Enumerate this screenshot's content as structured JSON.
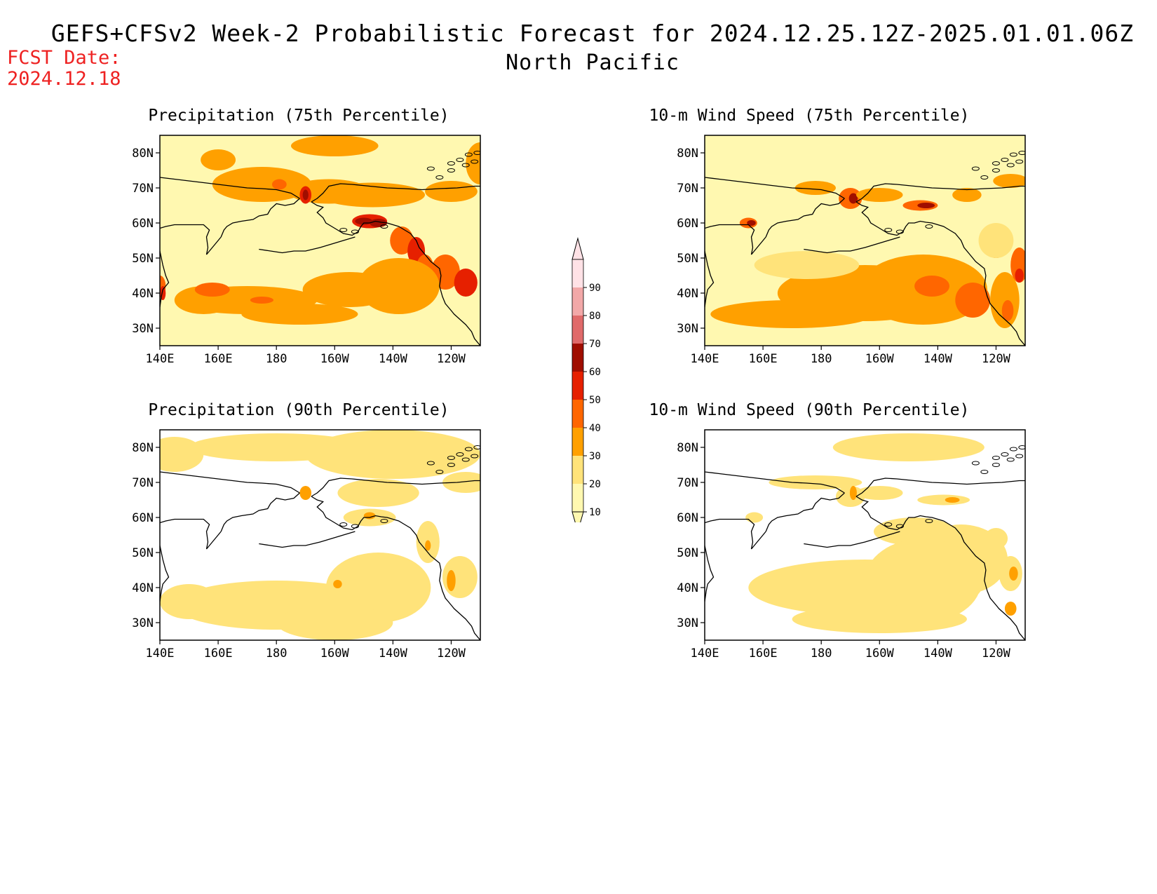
{
  "header": {
    "title": "GEFS+CFSv2 Week-2 Probabilistic Forecast for 2024.12.25.12Z-2025.01.01.06Z",
    "region": "North Pacific",
    "fcst_label": "FCST Date:",
    "fcst_date": "2024.12.18"
  },
  "panels": [
    {
      "id": "precip75",
      "title": "Precipitation (75th Percentile)"
    },
    {
      "id": "wind75",
      "title": "10-m Wind Speed (75th Percentile)"
    },
    {
      "id": "precip90",
      "title": "Precipitation (90th Percentile)"
    },
    {
      "id": "wind90",
      "title": "10-m Wind Speed (90th Percentile)"
    }
  ],
  "axes": {
    "lon_labels": [
      "140E",
      "160E",
      "180",
      "160W",
      "140W",
      "120W"
    ],
    "lat_labels": [
      "80N",
      "70N",
      "60N",
      "50N",
      "40N",
      "30N"
    ]
  },
  "colorbar": {
    "levels": [
      "10",
      "20",
      "30",
      "40",
      "50",
      "60",
      "70",
      "80",
      "90"
    ],
    "colors": [
      "#fff8b0",
      "#ffe37a",
      "#ffa000",
      "#ff6600",
      "#e62000",
      "#a00e00",
      "#e06a6a",
      "#f2a8a8",
      "#ffe2e6"
    ]
  }
}
